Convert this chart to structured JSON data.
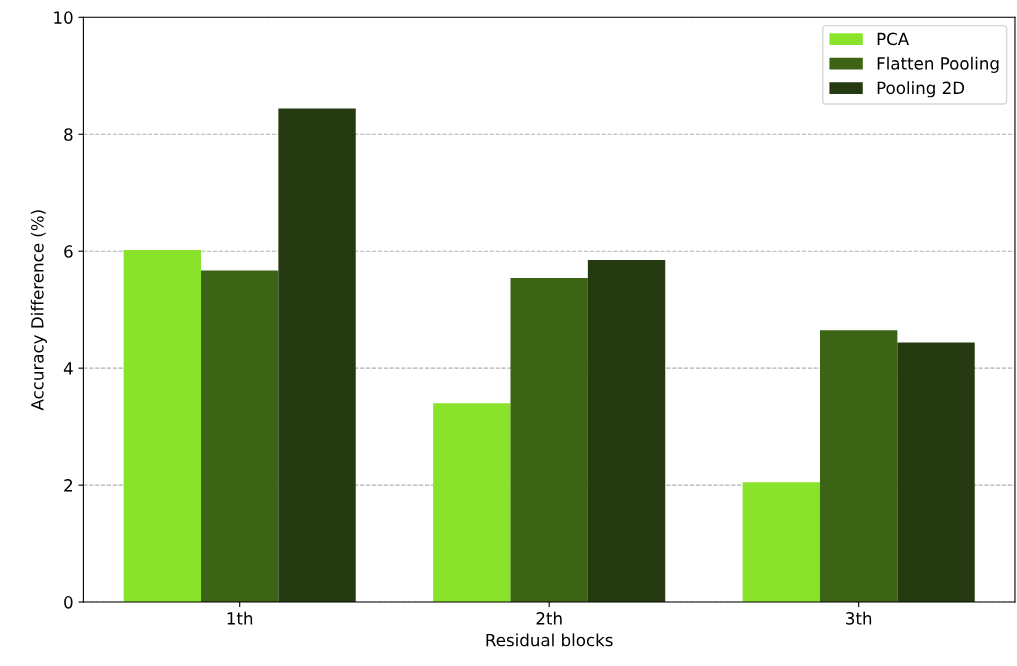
{
  "chart_data": {
    "type": "bar",
    "xlabel": "Residual blocks",
    "ylabel": "Accuracy Difference (%)",
    "categories": [
      "1th",
      "2th",
      "3th"
    ],
    "series": [
      {
        "name": "PCA",
        "color": "#8ae32b",
        "values": [
          6.02,
          3.4,
          2.05
        ]
      },
      {
        "name": "Flatten Pooling",
        "color": "#3d6314",
        "values": [
          5.67,
          5.54,
          4.65
        ]
      },
      {
        "name": "Pooling 2D",
        "color": "#263a12",
        "values": [
          8.44,
          5.85,
          4.44
        ]
      }
    ],
    "ylim": [
      0,
      10
    ],
    "yticks": [
      0,
      2,
      4,
      6,
      8,
      10
    ],
    "grid": "y",
    "legend": "top right"
  }
}
